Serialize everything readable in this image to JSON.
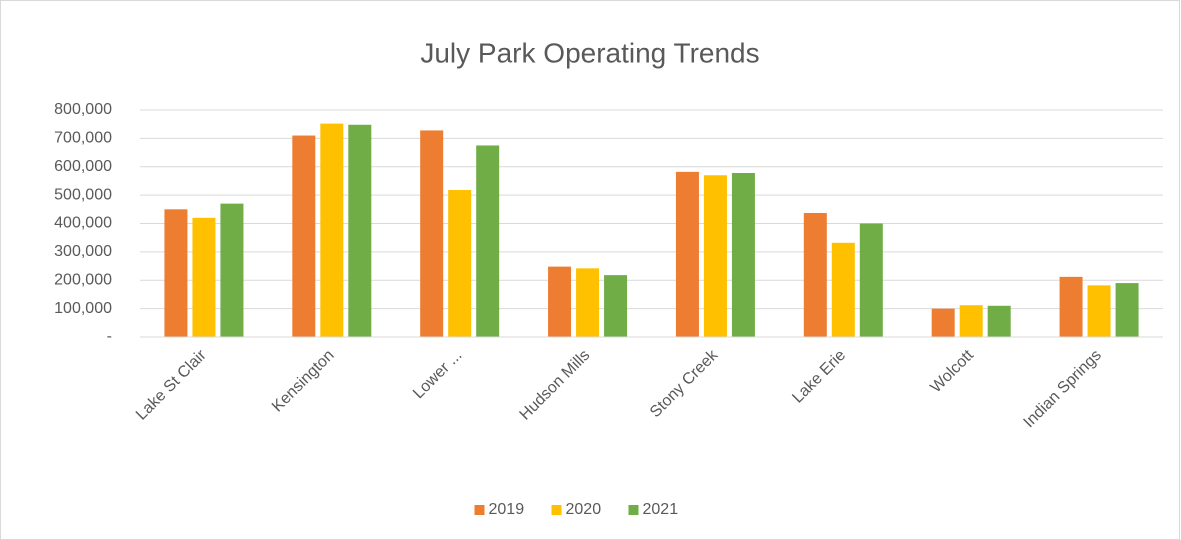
{
  "chart_data": {
    "type": "bar",
    "title": "July Park Operating Trends",
    "categories": [
      "Lake St Clair",
      "Kensington",
      "Lower ...",
      "Hudson Mills",
      "Stony Creek",
      "Lake Erie",
      "Wolcott",
      "Indian Springs"
    ],
    "series": [
      {
        "name": "2019",
        "color": "#ED7D31",
        "values": [
          450000,
          710000,
          728000,
          248000,
          582000,
          437000,
          100000,
          212000
        ]
      },
      {
        "name": "2020",
        "color": "#FFC000",
        "values": [
          420000,
          752000,
          518000,
          242000,
          570000,
          332000,
          112000,
          182000
        ]
      },
      {
        "name": "2021",
        "color": "#70AD47",
        "values": [
          470000,
          748000,
          675000,
          218000,
          578000,
          400000,
          110000,
          190000
        ]
      }
    ],
    "ylim": [
      0,
      800000
    ],
    "yticks": [
      {
        "value": 0,
        "label": "-"
      },
      {
        "value": 100000,
        "label": "100,000"
      },
      {
        "value": 200000,
        "label": "200,000"
      },
      {
        "value": 300000,
        "label": "300,000"
      },
      {
        "value": 400000,
        "label": "400,000"
      },
      {
        "value": 500000,
        "label": "500,000"
      },
      {
        "value": 600000,
        "label": "600,000"
      },
      {
        "value": 700000,
        "label": "700,000"
      },
      {
        "value": 800000,
        "label": "800,000"
      }
    ],
    "grid": true,
    "legend": "bottom"
  }
}
